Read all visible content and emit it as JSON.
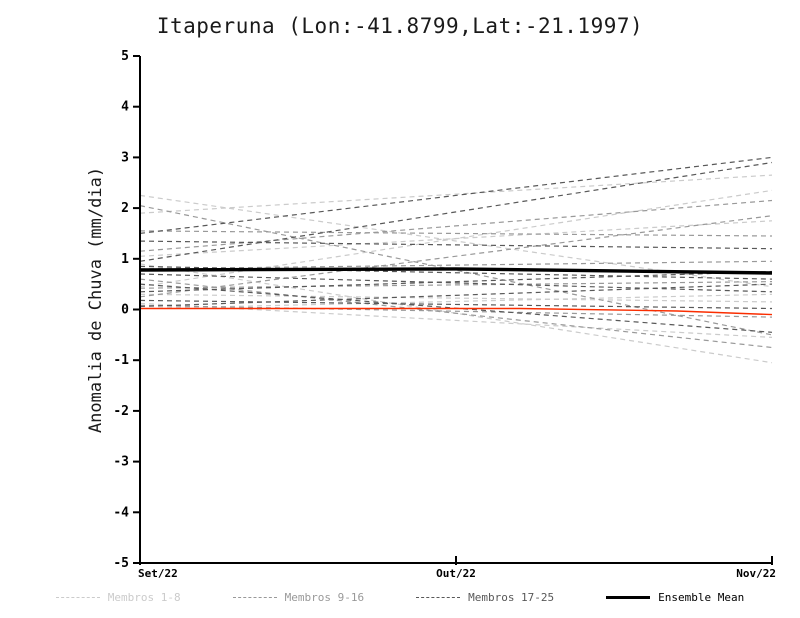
{
  "chart_data": {
    "type": "line",
    "title": "Itaperuna (Lon:-41.8799,Lat:-21.1997)",
    "xlabel": "",
    "ylabel": "Anomalia de Chuva (mm/dia)",
    "ylim": [
      -5,
      5
    ],
    "yticks": [
      -5,
      -4,
      -3,
      -2,
      -1,
      0,
      1,
      2,
      3,
      4,
      5
    ],
    "xticks": [
      {
        "pos": 0.0,
        "label": "Set/22"
      },
      {
        "pos": 0.5,
        "label": "Out/22"
      },
      {
        "pos": 1.0,
        "label": "Nov/22"
      }
    ],
    "grid": false,
    "legend_position": "bottom",
    "groups": [
      {
        "name": "Membros 1-8",
        "color": "#cbcbcb",
        "style": "dashed",
        "members": [
          {
            "points": [
              [
                0,
                2.25
              ],
              [
                1,
                0.45
              ]
            ]
          },
          {
            "points": [
              [
                0,
                1.9
              ],
              [
                1,
                2.65
              ]
            ]
          },
          {
            "points": [
              [
                0,
                1.05
              ],
              [
                1,
                1.75
              ]
            ]
          },
          {
            "points": [
              [
                0,
                0.9
              ],
              [
                1,
                -1.05
              ]
            ]
          },
          {
            "points": [
              [
                0,
                0.45
              ],
              [
                1,
                2.35
              ]
            ]
          },
          {
            "points": [
              [
                0,
                0.3
              ],
              [
                1,
                0.15
              ]
            ]
          },
          {
            "points": [
              [
                0,
                0.12
              ],
              [
                1,
                -0.55
              ]
            ]
          },
          {
            "points": [
              [
                0,
                0.02
              ],
              [
                1,
                0.3
              ]
            ]
          }
        ]
      },
      {
        "name": "Membros 9-16",
        "color": "#999999",
        "style": "dashed",
        "members": [
          {
            "points": [
              [
                0,
                2.05
              ],
              [
                1,
                -0.5
              ]
            ]
          },
          {
            "points": [
              [
                0,
                1.55
              ],
              [
                1,
                1.45
              ]
            ]
          },
          {
            "points": [
              [
                0,
                1.15
              ],
              [
                1,
                2.15
              ]
            ]
          },
          {
            "points": [
              [
                0,
                0.8
              ],
              [
                1,
                0.95
              ]
            ]
          },
          {
            "points": [
              [
                0,
                0.6
              ],
              [
                1,
                -0.75
              ]
            ]
          },
          {
            "points": [
              [
                0,
                0.42
              ],
              [
                1,
                0.55
              ]
            ]
          },
          {
            "points": [
              [
                0,
                0.25
              ],
              [
                1,
                1.85
              ]
            ]
          },
          {
            "points": [
              [
                0,
                0.08
              ],
              [
                1,
                -0.15
              ]
            ]
          }
        ]
      },
      {
        "name": "Membros 17-25",
        "color": "#585858",
        "style": "dashed",
        "members": [
          {
            "points": [
              [
                0,
                1.5
              ],
              [
                1,
                3.0
              ]
            ]
          },
          {
            "points": [
              [
                0,
                1.35
              ],
              [
                1,
                1.2
              ]
            ]
          },
          {
            "points": [
              [
                0,
                0.95
              ],
              [
                1,
                2.9
              ]
            ]
          },
          {
            "points": [
              [
                0,
                0.85
              ],
              [
                1,
                0.6
              ]
            ]
          },
          {
            "points": [
              [
                0,
                0.7
              ],
              [
                1,
                0.35
              ]
            ]
          },
          {
            "points": [
              [
                0,
                0.5
              ],
              [
                1,
                -0.45
              ]
            ]
          },
          {
            "points": [
              [
                0,
                0.35
              ],
              [
                1,
                0.75
              ]
            ]
          },
          {
            "points": [
              [
                0,
                0.18
              ],
              [
                1,
                0.02
              ]
            ]
          },
          {
            "points": [
              [
                0,
                0.06
              ],
              [
                1,
                0.5
              ]
            ]
          }
        ]
      }
    ],
    "ensemble_mean": {
      "name": "Ensemble Mean",
      "color": "#000000",
      "style": "solid",
      "points": [
        [
          0,
          0.78
        ],
        [
          0.5,
          0.8
        ],
        [
          1,
          0.72
        ]
      ]
    },
    "reference_line": {
      "name": "zero-anomaly",
      "color": "#fa2d00",
      "style": "solid",
      "points": [
        [
          0,
          0.02
        ],
        [
          0.6,
          0.02
        ],
        [
          0.85,
          -0.03
        ],
        [
          1,
          -0.1
        ]
      ]
    },
    "legend": [
      {
        "label": "Membros 1-8",
        "color": "#cbcbcb",
        "style": "dashed"
      },
      {
        "label": "Membros 9-16",
        "color": "#999999",
        "style": "dashed"
      },
      {
        "label": "Membros 17-25",
        "color": "#585858",
        "style": "dashed"
      },
      {
        "label": "Ensemble Mean",
        "color": "#000000",
        "style": "solid"
      }
    ]
  }
}
